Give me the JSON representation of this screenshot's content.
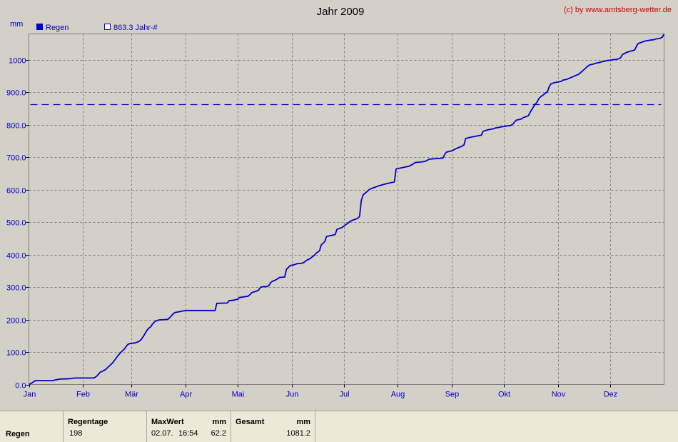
{
  "chart_data": {
    "type": "line",
    "title": "Jahr 2009",
    "credit": "(c) by www.amtsberg-wetter.de",
    "ylabel": "mm",
    "ylim": [
      0,
      1080
    ],
    "xlim": [
      0,
      365
    ],
    "y_ticks": [
      "0.0",
      "100.0",
      "200.0",
      "300.0",
      "400.0",
      "500.0",
      "600.0",
      "700.0",
      "800.0",
      "900.0",
      "1000"
    ],
    "y_tick_values": [
      0,
      100,
      200,
      300,
      400,
      500,
      600,
      700,
      800,
      900,
      1000
    ],
    "x_ticks": [
      "Jan",
      "Feb",
      "Mär",
      "Apr",
      "Mai",
      "Jun",
      "Jul",
      "Aug",
      "Sep",
      "Okt",
      "Nov",
      "Dez"
    ],
    "x_tick_days": [
      0,
      31,
      59,
      90,
      120,
      151,
      181,
      212,
      243,
      273,
      304,
      334
    ],
    "grid": true,
    "legend_position": "top-left",
    "legend": [
      "Regen",
      "863.3 Jahr-#"
    ],
    "colors": {
      "series": "#0000cc",
      "grid": "#808080",
      "plot_bg": "#d4d0c8"
    },
    "reference_line": {
      "name": "863.3 Jahr-#",
      "value": 863.3,
      "style": "dashed"
    },
    "series": [
      {
        "name": "Regen",
        "x": [
          0,
          2,
          3,
          4,
          14,
          15,
          18,
          24,
          26,
          37,
          38,
          39,
          40,
          41,
          42,
          44,
          46,
          48,
          50,
          51,
          53,
          55,
          56,
          57,
          58,
          59,
          61,
          63,
          64,
          65,
          66,
          67,
          68,
          69,
          70,
          71,
          72,
          73,
          75,
          78,
          80,
          82,
          83,
          84,
          86,
          88,
          89,
          91,
          93,
          94,
          95,
          97,
          101,
          105,
          106,
          107,
          108,
          114,
          115,
          118,
          119,
          120,
          121,
          126,
          127,
          128,
          131,
          132,
          133,
          134,
          137,
          138,
          139,
          140,
          141,
          143,
          144,
          147,
          148,
          149,
          150,
          153,
          154,
          156,
          157,
          158,
          159,
          160,
          161,
          164,
          165,
          167,
          168,
          170,
          171,
          176,
          177,
          180,
          181,
          182,
          185,
          186,
          187,
          188,
          189,
          190,
          191,
          192,
          193,
          194,
          195,
          196,
          197,
          198,
          201,
          205,
          210,
          211,
          218,
          219,
          221,
          222,
          224,
          226,
          227,
          228,
          230,
          234,
          237,
          238,
          239,
          240,
          243,
          246,
          248,
          250,
          251,
          254,
          260,
          261,
          264,
          265,
          267,
          268,
          270,
          272,
          273,
          274,
          277,
          278,
          279,
          280,
          283,
          284,
          285,
          286,
          287,
          288,
          290,
          291,
          292,
          293,
          294,
          298,
          299,
          300,
          302,
          306,
          307,
          309,
          310,
          316,
          319,
          321,
          322,
          325,
          326,
          328,
          329,
          331,
          332,
          334,
          335,
          338,
          339,
          340,
          341,
          343,
          344,
          345,
          348,
          349,
          350,
          354,
          356,
          357,
          359,
          360,
          362,
          363,
          364,
          365
        ],
        "values": [
          0,
          6,
          10,
          12,
          12,
          14,
          17,
          18,
          20,
          20,
          22,
          26,
          32,
          38,
          40,
          46,
          56,
          66,
          80,
          88,
          100,
          110,
          118,
          124,
          126,
          127,
          128,
          132,
          136,
          142,
          150,
          160,
          168,
          174,
          178,
          186,
          192,
          196,
          199,
          200,
          201,
          212,
          218,
          222,
          224,
          226,
          227,
          228,
          228,
          228,
          228,
          228,
          228,
          228,
          228,
          228,
          250,
          251,
          258,
          260,
          262,
          262,
          268,
          272,
          277,
          283,
          288,
          291,
          299,
          301,
          302,
          306,
          314,
          318,
          320,
          326,
          330,
          331,
          355,
          360,
          366,
          370,
          372,
          373,
          374,
          376,
          380,
          384,
          386,
          398,
          404,
          412,
          430,
          440,
          456,
          462,
          478,
          484,
          488,
          492,
          504,
          506,
          508,
          510,
          512,
          518,
          566,
          584,
          588,
          593,
          598,
          602,
          604,
          606,
          612,
          618,
          624,
          664,
          672,
          674,
          680,
          684,
          685,
          686,
          687,
          688,
          694,
          696,
          697,
          698,
          710,
          716,
          720,
          728,
          732,
          738,
          758,
          762,
          768,
          780,
          785,
          786,
          788,
          790,
          792,
          794,
          795,
          796,
          798,
          802,
          808,
          814,
          818,
          822,
          824,
          826,
          828,
          838,
          856,
          864,
          870,
          880,
          886,
          902,
          918,
          926,
          930,
          934,
          938,
          940,
          942,
          956,
          970,
          980,
          984,
          988,
          990,
          992,
          994,
          996,
          998,
          999,
          1000,
          1002,
          1004,
          1006,
          1016,
          1022,
          1024,
          1026,
          1030,
          1040,
          1050,
          1058,
          1060,
          1061,
          1062,
          1064,
          1066,
          1067,
          1070,
          1080
        ]
      }
    ]
  },
  "stats": {
    "row_label": "Regen",
    "regentage_header": "Regentage",
    "regentage_value": "198",
    "maxwert_header": "MaxWert",
    "maxwert_unit": "mm",
    "maxwert_date": "02.07.",
    "maxwert_time": "16:54",
    "maxwert_value": "62.2",
    "gesamt_header": "Gesamt",
    "gesamt_unit": "mm",
    "gesamt_value": "1081.2"
  }
}
